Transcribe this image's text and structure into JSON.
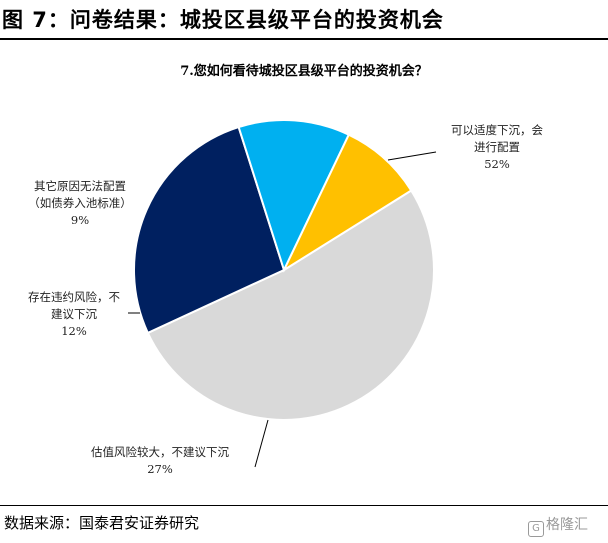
{
  "figure": {
    "title": "图 7：问卷结果：城投区县级平台的投资机会",
    "source": "数据来源：国泰君安证券研究",
    "watermark": "格隆汇"
  },
  "chart_data": {
    "type": "pie",
    "title": "7.您如何看待城投区县级平台的投资机会？",
    "slices": [
      {
        "label_lines": [
          "可以适度下沉，会",
          "进行配置"
        ],
        "percent_text": "52%",
        "value": 52,
        "color": "#d9d9d9"
      },
      {
        "label_lines": [
          "估值风险较大，不建议下沉"
        ],
        "percent_text": "27%",
        "value": 27,
        "color": "#002060"
      },
      {
        "label_lines": [
          "存在违约风险，不",
          "建议下沉"
        ],
        "percent_text": "12%",
        "value": 12,
        "color": "#00b0f0"
      },
      {
        "label_lines": [
          "其它原因无法配置",
          "（如债券入池标准）"
        ],
        "percent_text": "9%",
        "value": 9,
        "color": "#ffc000"
      }
    ]
  }
}
